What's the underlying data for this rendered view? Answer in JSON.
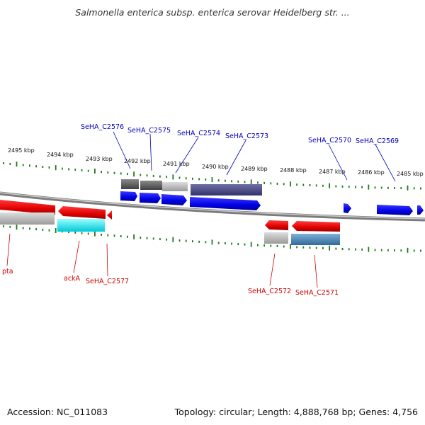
{
  "title": "Salmonella enterica subsp. enterica serovar Heidelberg str. ...",
  "footer": {
    "accession": "Accession: NC_011083",
    "summary": "Topology: circular; Length: 4,888,768 bp; Genes: 4,756"
  },
  "colors": {
    "forward_label": "#0000bb",
    "reverse_label": "#cc0000",
    "tick": "#1a7a1a",
    "backbone": "#888888"
  },
  "ticks": [
    "2495 kbp",
    "2494 kbp",
    "2493 kbp",
    "2492 kbp",
    "2491 kbp",
    "2490 kbp",
    "2489 kbp",
    "2488 kbp",
    "2487 kbp",
    "2486 kbp",
    "2485 kbp"
  ],
  "forward_genes": [
    "SeHA_C2576",
    "SeHA_C2575",
    "SeHA_C2574",
    "SeHA_C2573",
    "SeHA_C2570",
    "SeHA_C2569"
  ],
  "reverse_genes": [
    "pta",
    "ackA",
    "SeHA_C2577",
    "SeHA_C2572",
    "SeHA_C2571"
  ]
}
